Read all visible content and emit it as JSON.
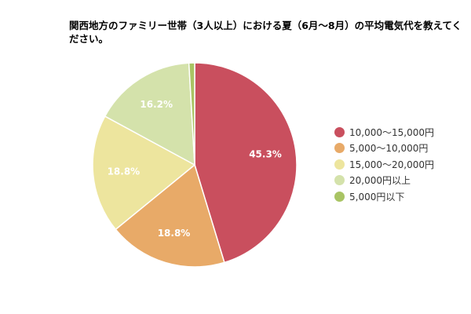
{
  "chart_data": {
    "type": "pie",
    "title": "関西地方のファミリー世帯（3人以上）における夏（6月～8月）の平均電気代を教えてください。",
    "legend_position": "right",
    "slices": [
      {
        "label": "10,000～15,000円",
        "value": 45.3,
        "display": "45.3%",
        "color": "#c94f5e"
      },
      {
        "label": "5,000～10,000円",
        "value": 18.8,
        "display": "18.8%",
        "color": "#e8aa68"
      },
      {
        "label": "15,000～20,000円",
        "value": 18.8,
        "display": "18.8%",
        "color": "#ede59e"
      },
      {
        "label": "20,000円以上",
        "value": 16.2,
        "display": "16.2%",
        "color": "#d4e2ab"
      },
      {
        "label": "5,000円以下",
        "value": 0.9,
        "display": "",
        "color": "#a9c464"
      }
    ]
  }
}
